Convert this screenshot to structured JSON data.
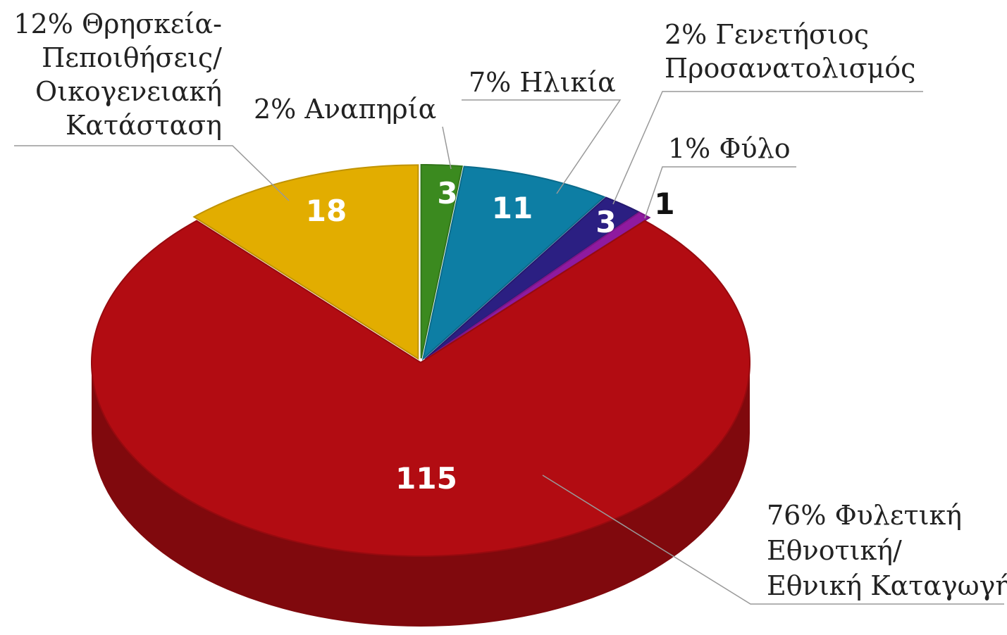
{
  "chart_data": {
    "type": "pie3d",
    "categories": [
      [
        "Αναπηρία"
      ],
      [
        "Ηλικία"
      ],
      [
        "Γενετήσιος",
        "Προσανατολισμός"
      ],
      [
        "Φύλο"
      ],
      [
        "Φυλετική",
        "Εθνοτική/",
        "Εθνική Καταγωγή"
      ],
      [
        "Θρησκεία-",
        "Πεποιθήσεις/",
        "Οικογενειακή",
        "Κατάσταση"
      ]
    ],
    "values": [
      3,
      11,
      3,
      1,
      115,
      18
    ],
    "percent_labels": [
      "2%",
      "7%",
      "2%",
      "1%",
      "76%",
      "12%"
    ],
    "colors": [
      "#3b8a1f",
      "#0d7ea4",
      "#2b1f82",
      "#8f1a9f",
      "#b20c12",
      "#e2ad00"
    ]
  }
}
